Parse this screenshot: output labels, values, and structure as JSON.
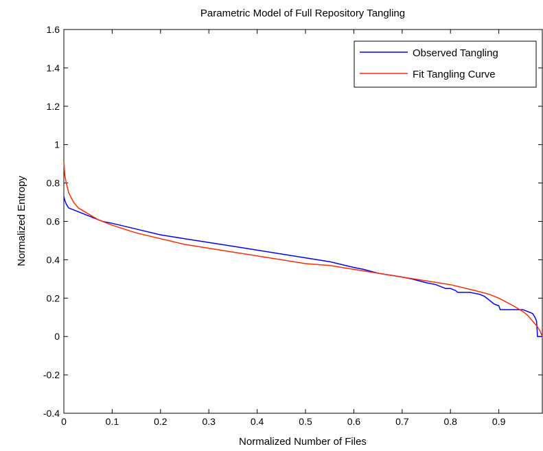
{
  "chart_data": {
    "type": "line",
    "title": "Parametric Model of Full Repository Tangling",
    "xlabel": "Normalized Number of Files",
    "ylabel": "Normalized Entropy",
    "xlim": [
      0,
      0.99
    ],
    "ylim": [
      -0.4,
      1.6
    ],
    "xticks": [
      0,
      0.1,
      0.2,
      0.3,
      0.4,
      0.5,
      0.6,
      0.7,
      0.8,
      0.9
    ],
    "xtick_labels": [
      "0",
      "0.1",
      "0.2",
      "0.3",
      "0.4",
      "0.5",
      "0.6",
      "0.7",
      "0.8",
      "0.9"
    ],
    "yticks": [
      -0.4,
      -0.2,
      0,
      0.2,
      0.4,
      0.6,
      0.8,
      1,
      1.2,
      1.4,
      1.6
    ],
    "ytick_labels": [
      "-0.4",
      "-0.2",
      "0",
      "0.2",
      "0.4",
      "0.6",
      "0.8",
      "1",
      "1.2",
      "1.4",
      "1.6"
    ],
    "grid": false,
    "legend_position": "top-right",
    "series": [
      {
        "name": "Observed Tangling",
        "color": "#0000ff",
        "x": [
          0,
          0.002,
          0.005,
          0.01,
          0.02,
          0.04,
          0.06,
          0.08,
          0.1,
          0.15,
          0.2,
          0.25,
          0.3,
          0.35,
          0.4,
          0.45,
          0.5,
          0.55,
          0.6,
          0.62,
          0.65,
          0.7,
          0.72,
          0.75,
          0.77,
          0.79,
          0.8,
          0.81,
          0.815,
          0.84,
          0.86,
          0.87,
          0.88,
          0.89,
          0.9,
          0.903,
          0.94,
          0.95,
          0.96,
          0.97,
          0.975,
          0.978,
          0.98,
          0.985,
          0.99
        ],
        "y": [
          0.73,
          0.71,
          0.69,
          0.67,
          0.66,
          0.64,
          0.62,
          0.6,
          0.59,
          0.56,
          0.53,
          0.51,
          0.49,
          0.47,
          0.45,
          0.43,
          0.41,
          0.39,
          0.36,
          0.35,
          0.33,
          0.31,
          0.3,
          0.28,
          0.27,
          0.25,
          0.25,
          0.24,
          0.23,
          0.23,
          0.22,
          0.21,
          0.19,
          0.17,
          0.16,
          0.14,
          0.14,
          0.14,
          0.13,
          0.12,
          0.1,
          0.08,
          0.0,
          0.0,
          0.0
        ]
      },
      {
        "name": "Fit Tangling Curve",
        "color": "#ff2a00",
        "x": [
          0,
          0.002,
          0.005,
          0.01,
          0.02,
          0.03,
          0.05,
          0.07,
          0.1,
          0.15,
          0.2,
          0.25,
          0.3,
          0.35,
          0.4,
          0.45,
          0.5,
          0.55,
          0.6,
          0.65,
          0.7,
          0.75,
          0.8,
          0.85,
          0.88,
          0.9,
          0.93,
          0.95,
          0.96,
          0.97,
          0.98,
          0.985,
          0.99
        ],
        "y": [
          0.91,
          0.84,
          0.8,
          0.75,
          0.7,
          0.67,
          0.64,
          0.61,
          0.58,
          0.54,
          0.51,
          0.48,
          0.46,
          0.44,
          0.42,
          0.4,
          0.38,
          0.37,
          0.35,
          0.33,
          0.31,
          0.29,
          0.27,
          0.24,
          0.22,
          0.2,
          0.16,
          0.13,
          0.11,
          0.08,
          0.05,
          0.03,
          0.0
        ]
      }
    ]
  }
}
